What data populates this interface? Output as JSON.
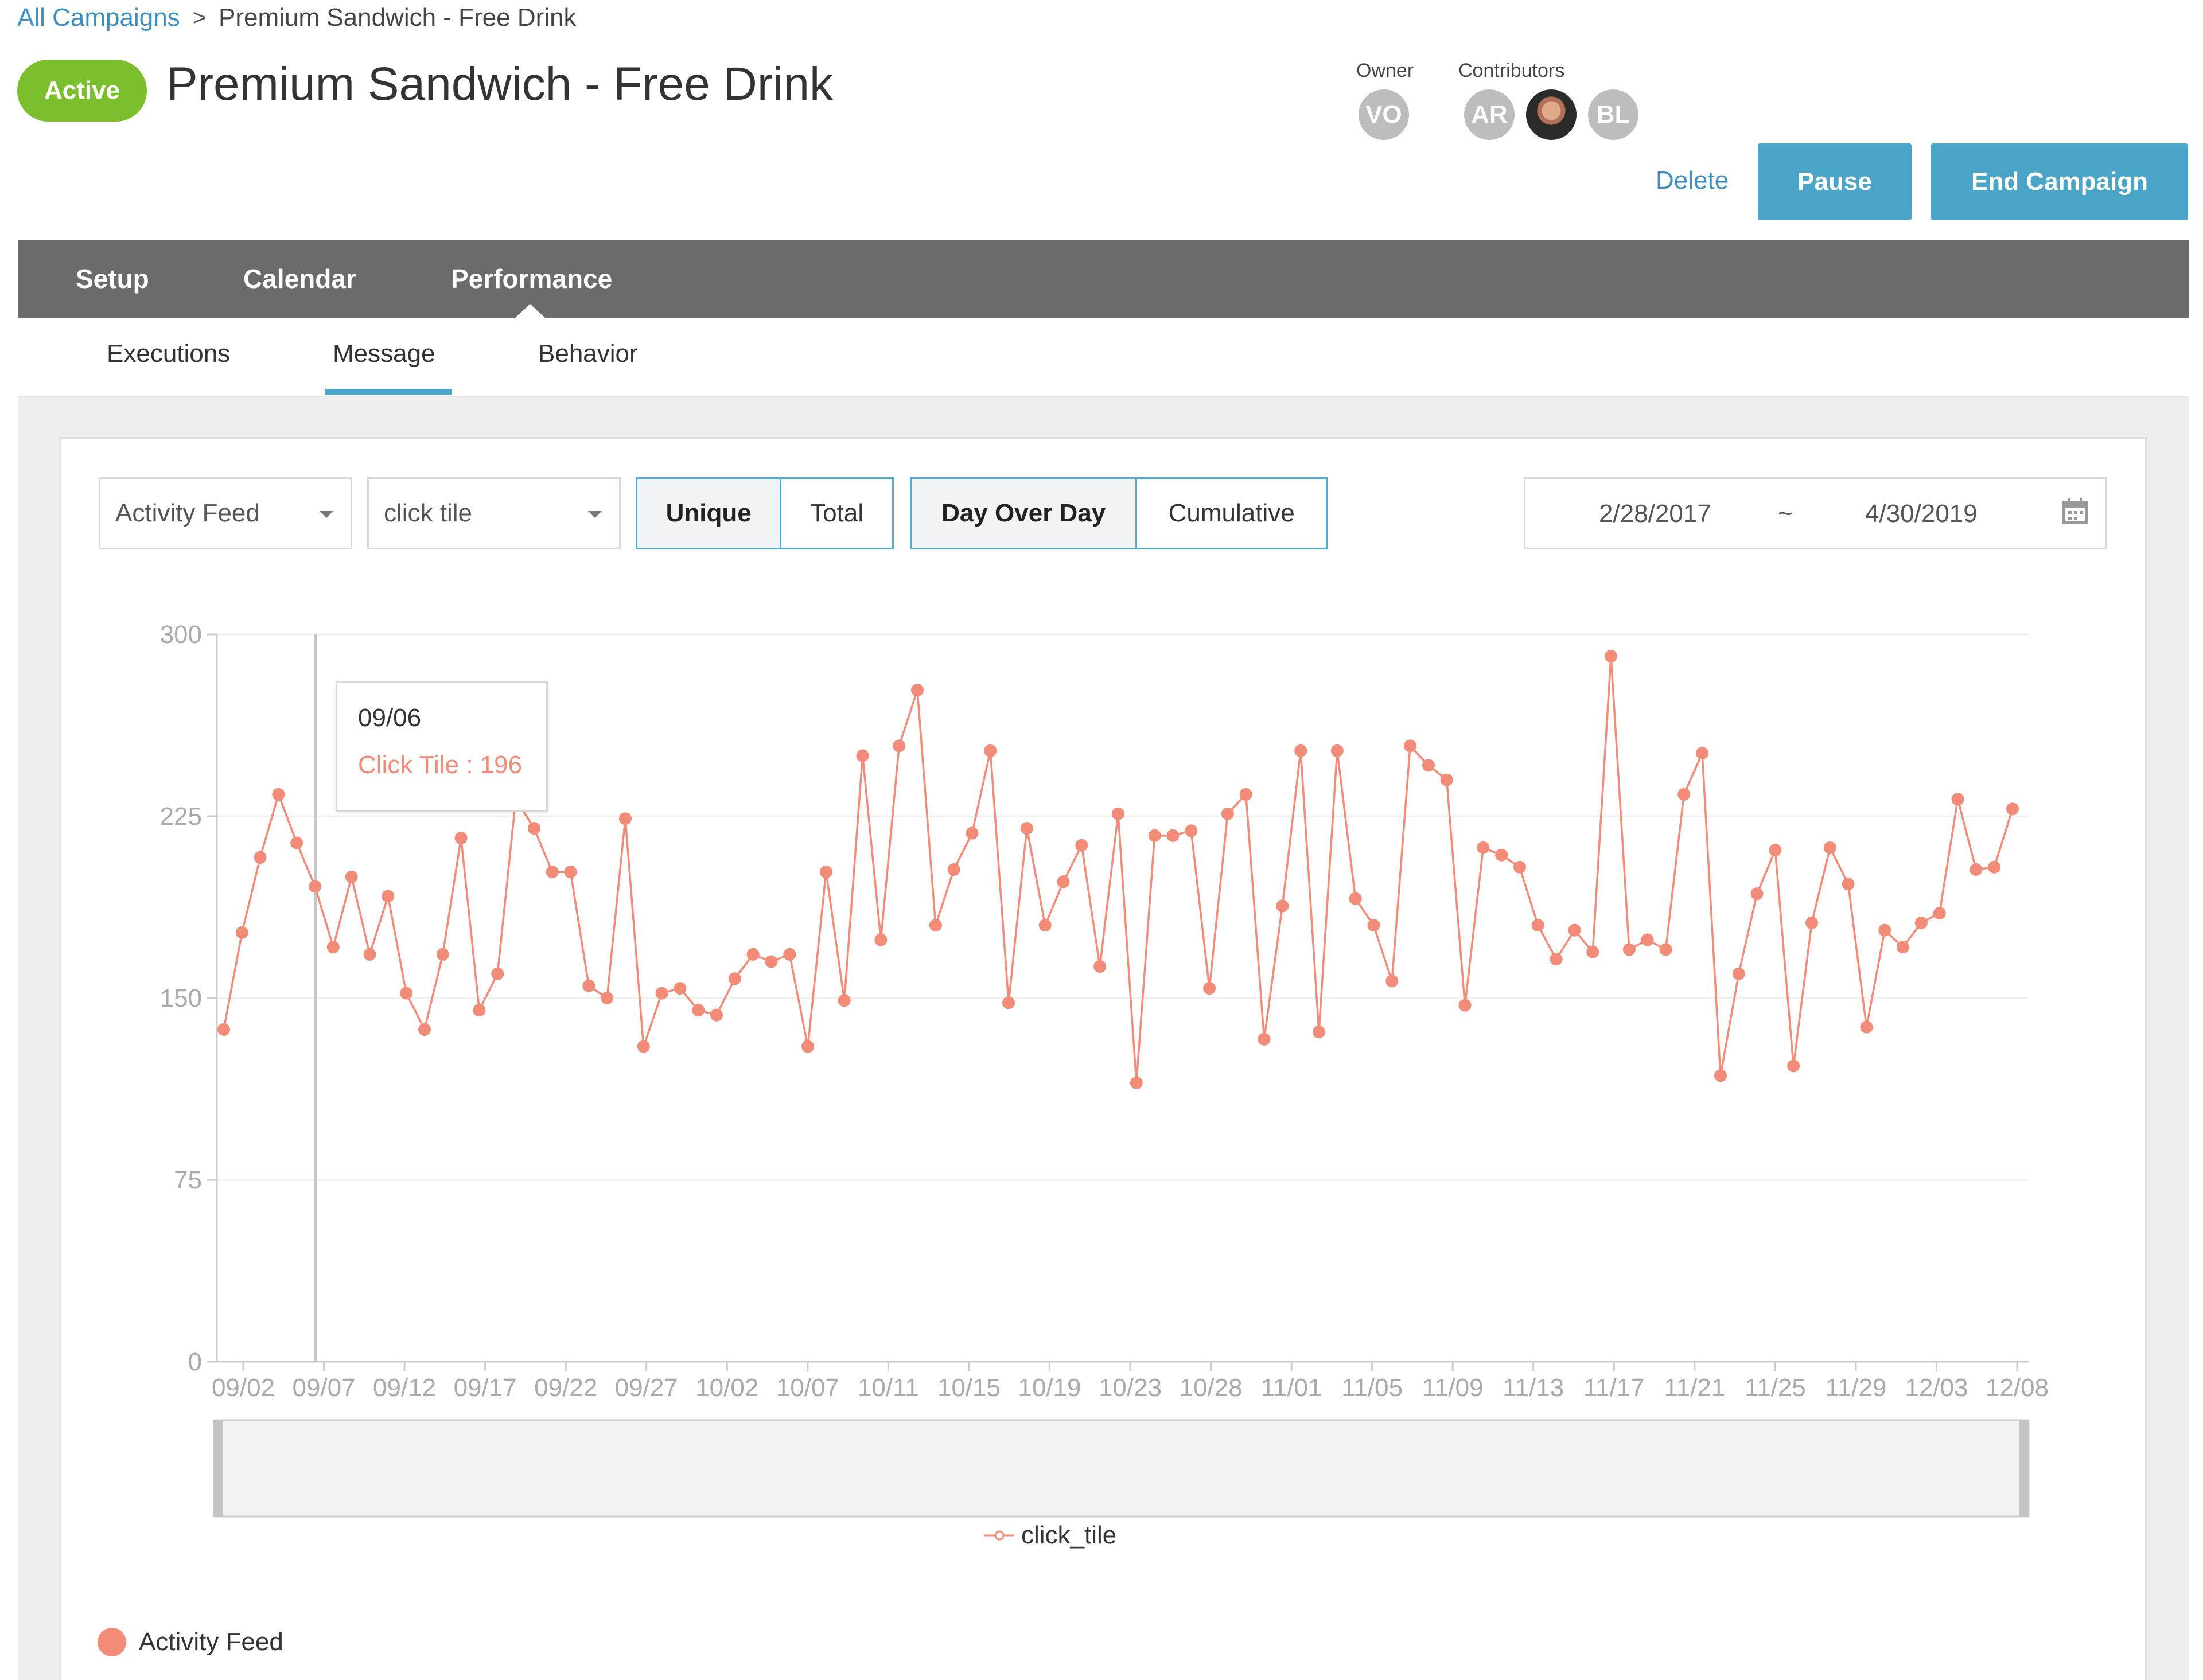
{
  "breadcrumb": {
    "root": "All Campaigns",
    "separator": ">",
    "current": "Premium Sandwich - Free Drink"
  },
  "header": {
    "status": "Active",
    "title": "Premium Sandwich - Free Drink"
  },
  "people": {
    "owner_label": "Owner",
    "contributors_label": "Contributors",
    "owner": "VO",
    "contributors": [
      "AR",
      "",
      "BL"
    ]
  },
  "actions": {
    "delete": "Delete",
    "pause": "Pause",
    "end": "End Campaign"
  },
  "nav": {
    "tabs": [
      "Setup",
      "Calendar",
      "Performance"
    ],
    "active": "Performance"
  },
  "subnav": {
    "tabs": [
      "Executions",
      "Message",
      "Behavior"
    ],
    "active": "Message"
  },
  "filters": {
    "event_source": "Activity Feed",
    "event": "click tile",
    "count_mode": [
      "Unique",
      "Total"
    ],
    "count_mode_selected": "Unique",
    "aggregation": [
      "Day Over Day",
      "Cumulative"
    ],
    "aggregation_selected": "Day Over Day",
    "date_from": "2/28/2017",
    "date_sep": "~",
    "date_to": "4/30/2019"
  },
  "tooltip": {
    "date": "09/06",
    "text": "Click Tile : 196"
  },
  "footer_legend": "Activity Feed",
  "colors": {
    "accent": "#4aa5c9",
    "status": "#7cbf2e",
    "series": "#f28b78",
    "nav": "#6b6b6b"
  },
  "chart_data": {
    "type": "line",
    "x_tick_labels": [
      "09/02",
      "09/07",
      "09/12",
      "09/17",
      "09/22",
      "09/27",
      "10/02",
      "10/07",
      "10/11",
      "10/15",
      "10/19",
      "10/23",
      "10/28",
      "11/01",
      "11/05",
      "11/09",
      "11/13",
      "11/17",
      "11/21",
      "11/25",
      "11/29",
      "12/03",
      "12/08"
    ],
    "y_ticks": [
      0,
      75,
      150,
      225,
      300
    ],
    "ylim": [
      0,
      300
    ],
    "grid": true,
    "legend": "bottom",
    "series": [
      {
        "name": "click_tile",
        "values": [
          137,
          177,
          208,
          234,
          214,
          196,
          171,
          200,
          168,
          192,
          152,
          137,
          168,
          216,
          145,
          160,
          232,
          220,
          202,
          202,
          155,
          150,
          224,
          130,
          152,
          154,
          145,
          143,
          158,
          168,
          165,
          168,
          130,
          202,
          149,
          250,
          174,
          254,
          277,
          180,
          203,
          218,
          252,
          148,
          220,
          180,
          198,
          213,
          163,
          226,
          115,
          217,
          217,
          219,
          154,
          226,
          234,
          133,
          188,
          252,
          136,
          252,
          191,
          180,
          157,
          254,
          246,
          240,
          147,
          212,
          209,
          204,
          180,
          166,
          178,
          169,
          291,
          170,
          174,
          170,
          234,
          251,
          118,
          160,
          193,
          211,
          122,
          181,
          212,
          197,
          138,
          178,
          171,
          181,
          185,
          232,
          203,
          204,
          228
        ]
      }
    ]
  }
}
